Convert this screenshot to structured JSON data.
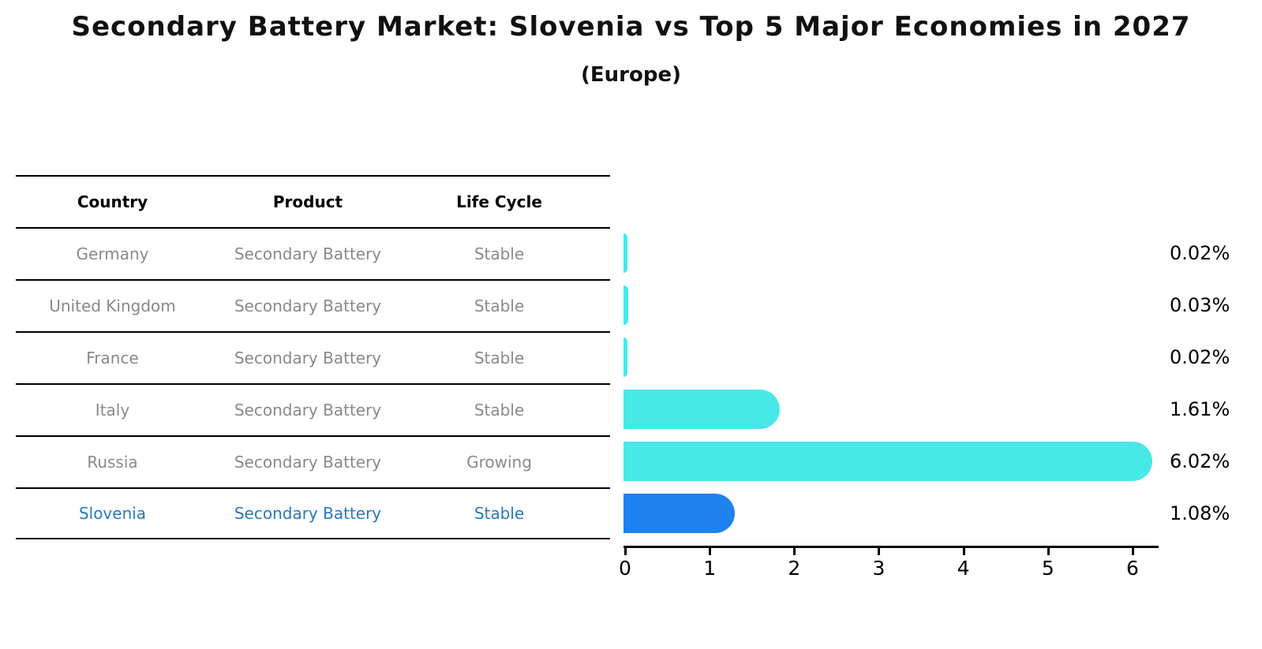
{
  "title": "Secondary Battery Market: Slovenia vs Top 5 Major Economies in 2027",
  "subtitle": "(Europe)",
  "table": {
    "headers": [
      "Country",
      "Product",
      "Life Cycle"
    ],
    "rows": [
      {
        "country": "Germany",
        "product": "Secondary Battery",
        "life_cycle": "Stable",
        "highlighted": false
      },
      {
        "country": "United Kingdom",
        "product": "Secondary Battery",
        "life_cycle": "Stable",
        "highlighted": false
      },
      {
        "country": "France",
        "product": "Secondary Battery",
        "life_cycle": "Stable",
        "highlighted": false
      },
      {
        "country": "Italy",
        "product": "Secondary Battery",
        "life_cycle": "Stable",
        "highlighted": false
      },
      {
        "country": "Russia",
        "product": "Secondary Battery",
        "life_cycle": "Growing",
        "highlighted": false
      },
      {
        "country": "Slovenia",
        "product": "Secondary Battery",
        "life_cycle": "Stable",
        "highlighted": true
      }
    ]
  },
  "chart_data": {
    "type": "bar",
    "orientation": "horizontal",
    "title": "Secondary Battery Market: Slovenia vs Top 5 Major Economies in 2027",
    "subtitle": "(Europe)",
    "categories": [
      "Germany",
      "United Kingdom",
      "France",
      "Italy",
      "Russia",
      "Slovenia"
    ],
    "values": [
      0.02,
      0.03,
      0.02,
      1.61,
      6.02,
      1.08
    ],
    "value_labels": [
      "0.02%",
      "0.03%",
      "0.02%",
      "1.61%",
      "6.02%",
      "1.08%"
    ],
    "unit": "%",
    "x_ticks": [
      "0",
      "1",
      "2",
      "3",
      "4",
      "5",
      "6"
    ],
    "xlim": [
      0,
      6.3
    ],
    "grid": false,
    "legend": false,
    "highlight_index": 5
  },
  "colors": {
    "bar_default": "#48E8E8",
    "bar_highlight": "#1E82F0",
    "highlight_text": "#2878BE",
    "row_text": "#898989",
    "header_text": "#000000",
    "axis": "#000000"
  }
}
